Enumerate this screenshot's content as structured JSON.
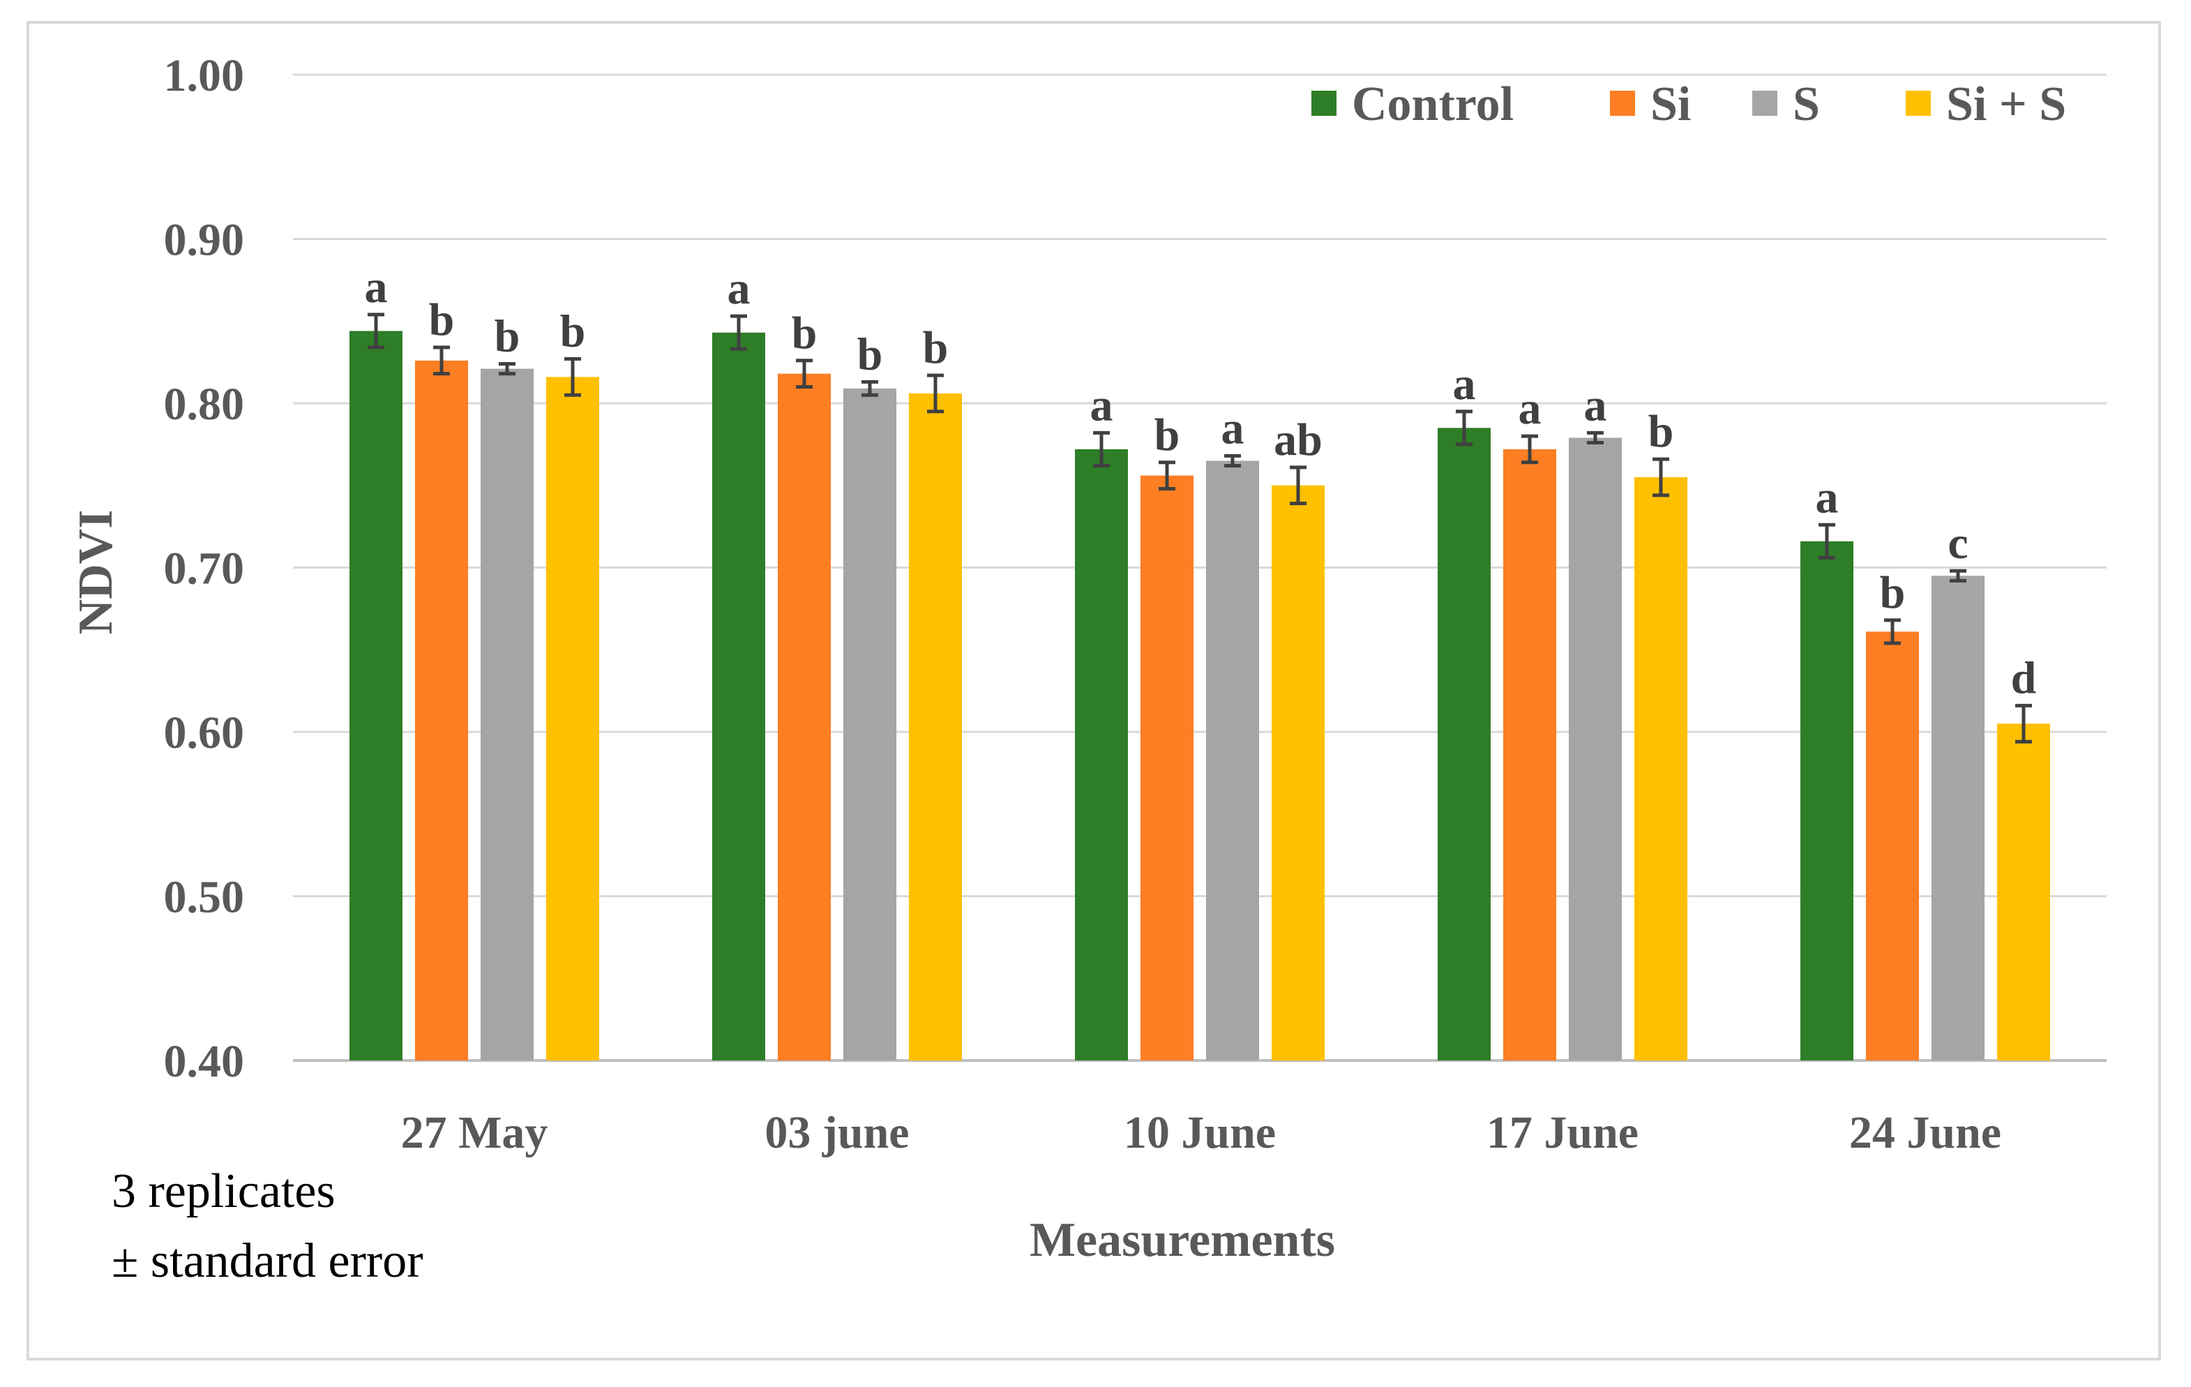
{
  "chart_data": {
    "type": "bar",
    "title": "",
    "xlabel": "Measurements",
    "ylabel": "NDVI",
    "ylim": [
      0.4,
      1.0
    ],
    "yticks": [
      "0.40",
      "0.50",
      "0.60",
      "0.70",
      "0.80",
      "0.90",
      "1.00"
    ],
    "grid": true,
    "legend_position": "top-right",
    "categories": [
      "27 May",
      "03 june",
      "10 June",
      "17 June",
      "24 June"
    ],
    "series": [
      {
        "name": "Control",
        "color": "#2e7d27",
        "values": [
          0.844,
          0.843,
          0.772,
          0.785,
          0.716
        ],
        "errors": [
          0.01,
          0.01,
          0.01,
          0.01,
          0.01
        ],
        "letters": [
          "a",
          "a",
          "a",
          "a",
          "a"
        ]
      },
      {
        "name": "Si",
        "color": "#fd7e23",
        "values": [
          0.826,
          0.818,
          0.756,
          0.772,
          0.661
        ],
        "errors": [
          0.008,
          0.008,
          0.008,
          0.008,
          0.007
        ],
        "letters": [
          "b",
          "b",
          "b",
          "a",
          "b"
        ]
      },
      {
        "name": "S",
        "color": "#a5a5a5",
        "values": [
          0.821,
          0.809,
          0.765,
          0.779,
          0.695
        ],
        "errors": [
          0.003,
          0.004,
          0.003,
          0.003,
          0.003
        ],
        "letters": [
          "b",
          "b",
          "a",
          "a",
          "c"
        ]
      },
      {
        "name": "Si + S",
        "color": "#ffc000",
        "values": [
          0.816,
          0.806,
          0.75,
          0.755,
          0.605
        ],
        "errors": [
          0.011,
          0.011,
          0.011,
          0.011,
          0.011
        ],
        "letters": [
          "b",
          "b",
          "ab",
          "b",
          "d"
        ]
      }
    ]
  },
  "notes": {
    "line1": "3 replicates",
    "line2": "± standard error"
  }
}
